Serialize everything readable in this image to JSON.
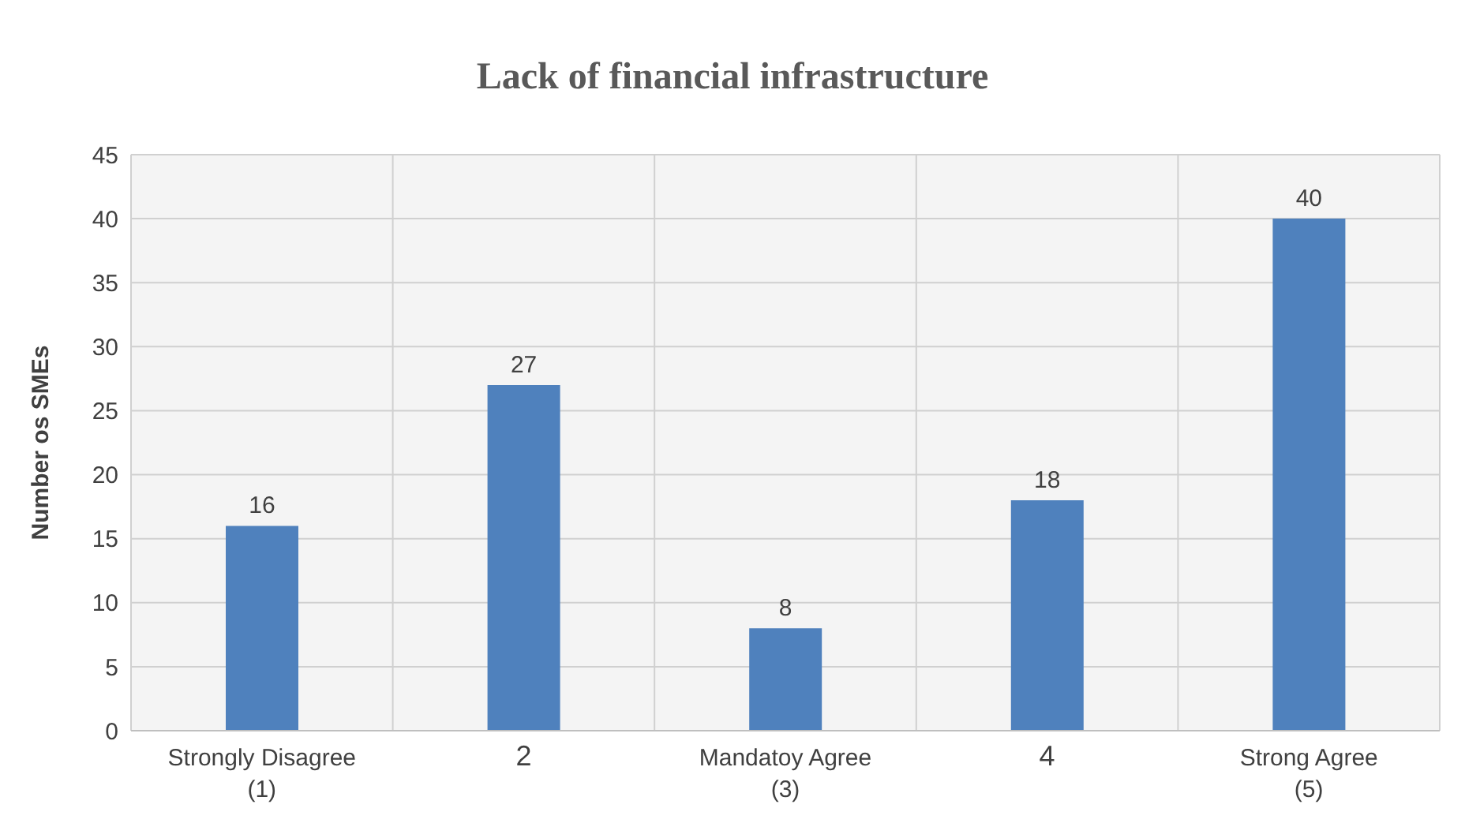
{
  "chart_data": {
    "type": "bar",
    "title": "Lack of financial infrastructure",
    "ylabel": "Number os SMEs",
    "categories": [
      "Strongly Disagree\n(1)",
      "2",
      "Mandatoy Agree\n(3)",
      "4",
      "Strong Agree\n(5)"
    ],
    "values": [
      16,
      27,
      8,
      18,
      40
    ],
    "color": "#4f81bd",
    "ylim": [
      0,
      45
    ],
    "yticks": [
      0,
      5,
      10,
      15,
      20,
      25,
      30,
      35,
      40,
      45
    ],
    "grid": true,
    "data_labels": true
  }
}
